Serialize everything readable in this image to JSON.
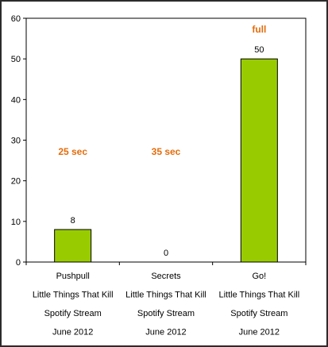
{
  "colors": {
    "bar": "#99CC00",
    "bar_stroke": "#000000",
    "annotation": "#E46C0A"
  },
  "chart_data": {
    "type": "bar",
    "categories": [
      [
        "Pushpull",
        "Little Things That Kill",
        "Spotify Stream",
        "June 2012"
      ],
      [
        "Secrets",
        "Little Things That Kill",
        "Spotify Stream",
        "June 2012"
      ],
      [
        "Go!",
        "Little Things That Kill",
        "Spotify Stream",
        "June 2012"
      ]
    ],
    "values": [
      8,
      0,
      50
    ],
    "data_labels": [
      "8",
      "0",
      "50"
    ],
    "annotations": [
      "25 sec",
      "35 sec",
      "full"
    ],
    "ylim": [
      0,
      60
    ],
    "yticks": [
      0,
      10,
      20,
      30,
      40,
      50,
      60
    ],
    "grid": false,
    "legend": "none",
    "title": "",
    "xlabel": "",
    "ylabel": ""
  }
}
